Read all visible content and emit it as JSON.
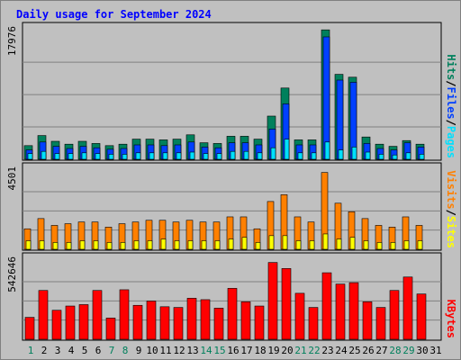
{
  "title": "Daily usage for September 2024",
  "colors": {
    "background": "#c0c0c0",
    "title": "#0000ff",
    "hits": "#00805c",
    "files": "#0040ff",
    "pages": "#00e0ff",
    "visits": "#ff8000",
    "sites": "#ffff00",
    "kbytes": "#ff0000",
    "weekend_day": "#00805c",
    "weekday": "#0000ff"
  },
  "chart_data": [
    {
      "type": "bar",
      "panel": "top",
      "x": [
        1,
        2,
        3,
        4,
        5,
        6,
        7,
        8,
        9,
        10,
        11,
        12,
        13,
        14,
        15,
        16,
        17,
        18,
        19,
        20,
        21,
        22,
        23,
        24,
        25,
        26,
        27,
        28,
        29,
        30,
        31
      ],
      "ymax_label": "17976",
      "ymax": 17976,
      "legend": [
        "Pages",
        "/",
        "Files",
        "/",
        "Hits"
      ],
      "series": [
        {
          "name": "Hits",
          "values": [
            1900,
            3300,
            2500,
            2100,
            2500,
            2200,
            1900,
            2100,
            2800,
            2800,
            2700,
            2800,
            3400,
            2300,
            2200,
            3200,
            3200,
            2800,
            6000,
            9900,
            2700,
            2700,
            17976,
            11800,
            11400,
            3100,
            2100,
            1800,
            2600,
            2100,
            null
          ]
        },
        {
          "name": "Files",
          "values": [
            1300,
            2400,
            1800,
            1500,
            1800,
            1600,
            1400,
            1500,
            2000,
            2000,
            1900,
            2000,
            2400,
            1700,
            1600,
            2300,
            2300,
            2000,
            4200,
            7700,
            2000,
            2000,
            17000,
            11000,
            10700,
            2200,
            1500,
            1300,
            2300,
            1700,
            null
          ]
        },
        {
          "name": "Pages",
          "values": [
            800,
            1100,
            800,
            800,
            900,
            800,
            700,
            700,
            900,
            900,
            900,
            900,
            1000,
            800,
            800,
            1100,
            1100,
            900,
            1600,
            2800,
            900,
            900,
            2400,
            1300,
            1700,
            1000,
            700,
            600,
            900,
            700,
            null
          ]
        }
      ]
    },
    {
      "type": "bar",
      "panel": "middle",
      "x": [
        1,
        2,
        3,
        4,
        5,
        6,
        7,
        8,
        9,
        10,
        11,
        12,
        13,
        14,
        15,
        16,
        17,
        18,
        19,
        20,
        21,
        22,
        23,
        24,
        25,
        26,
        27,
        28,
        29,
        30,
        31
      ],
      "ymax_label": "4501",
      "ymax": 4501,
      "legend": [
        "Sites",
        "/",
        "Visits"
      ],
      "series": [
        {
          "name": "Visits",
          "values": [
            1200,
            1800,
            1400,
            1500,
            1600,
            1600,
            1300,
            1500,
            1600,
            1700,
            1700,
            1600,
            1700,
            1600,
            1600,
            1900,
            1900,
            1200,
            2800,
            3200,
            1900,
            1600,
            4501,
            2700,
            2200,
            1800,
            1400,
            1300,
            1900,
            1400,
            null
          ]
        },
        {
          "name": "Sites",
          "values": [
            500,
            500,
            400,
            400,
            500,
            500,
            400,
            400,
            500,
            500,
            600,
            500,
            500,
            500,
            500,
            600,
            700,
            400,
            800,
            800,
            500,
            500,
            900,
            600,
            700,
            500,
            400,
            400,
            500,
            500,
            null
          ]
        }
      ]
    },
    {
      "type": "bar",
      "panel": "bottom",
      "x": [
        1,
        2,
        3,
        4,
        5,
        6,
        7,
        8,
        9,
        10,
        11,
        12,
        13,
        14,
        15,
        16,
        17,
        18,
        19,
        20,
        21,
        22,
        23,
        24,
        25,
        26,
        27,
        28,
        29,
        30,
        31
      ],
      "ymax_label": "542646",
      "ymax": 542646,
      "legend": [
        "KBytes"
      ],
      "series": [
        {
          "name": "KBytes",
          "values": [
            155000,
            345000,
            205000,
            235000,
            245000,
            345000,
            150000,
            350000,
            240000,
            270000,
            230000,
            225000,
            290000,
            280000,
            220000,
            360000,
            265000,
            235000,
            542646,
            500000,
            325000,
            225000,
            470000,
            390000,
            400000,
            265000,
            225000,
            345000,
            440000,
            320000,
            null
          ]
        }
      ]
    }
  ],
  "x_labels": [
    "1",
    "2",
    "3",
    "4",
    "5",
    "6",
    "7",
    "8",
    "9",
    "10",
    "11",
    "12",
    "13",
    "14",
    "15",
    "16",
    "17",
    "18",
    "19",
    "20",
    "21",
    "22",
    "23",
    "24",
    "25",
    "26",
    "27",
    "28",
    "29",
    "30",
    "31"
  ],
  "weekend_days": [
    1,
    7,
    8,
    14,
    15,
    21,
    22,
    28,
    29
  ]
}
